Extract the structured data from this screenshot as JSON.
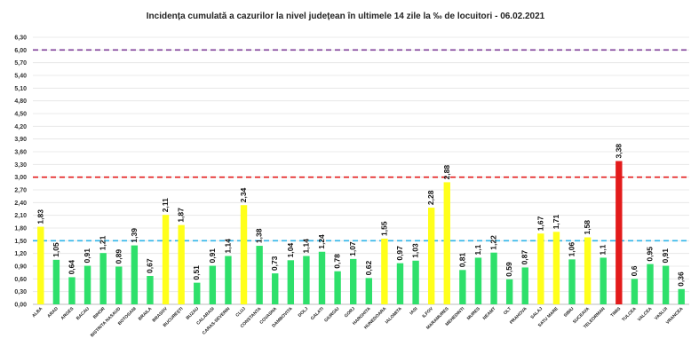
{
  "chart_data": {
    "type": "bar",
    "title": "Incidența cumulată a cazurilor la nivel județean în ultimele 14 zile la ‰ de locuitori - 06.02.2021",
    "xlabel": "",
    "ylabel": "",
    "ylim": [
      0,
      6.3
    ],
    "yticks": [
      "0,00",
      "0,30",
      "0,60",
      "0,90",
      "1,20",
      "1,50",
      "1,80",
      "2,10",
      "2,40",
      "2,70",
      "3,00",
      "3,30",
      "3,60",
      "3,90",
      "4,20",
      "4,50",
      "4,80",
      "5,10",
      "5,40",
      "5,70",
      "6,00",
      "6,30"
    ],
    "reference_lines": [
      {
        "value": 6.0,
        "color": "#7f3f98",
        "style": "dashed"
      },
      {
        "value": 3.0,
        "color": "#e31b1b",
        "style": "dashed"
      },
      {
        "value": 1.5,
        "color": "#2fb4e8",
        "style": "dashed"
      }
    ],
    "colors": {
      "green": "#2ee06b",
      "yellow": "#ffff1a",
      "red": "#e31b1b"
    },
    "categories": [
      "ALBA",
      "ARAD",
      "ARGES",
      "BACAU",
      "BIHOR",
      "BISTRITA NASAUD",
      "BOTOSANI",
      "BRAILA",
      "BRASOV",
      "BUCUREȘTI",
      "BUZAU",
      "CALARASI",
      "CARAS-SEVERIN",
      "CLUJ",
      "CONSTANTA",
      "COVASNA",
      "DAMBOVITA",
      "DOLJ",
      "GALATI",
      "GIURGIU",
      "GORJ",
      "HARGHITA",
      "HUNEDOARA",
      "IALOMITA",
      "IASI",
      "ILFOV",
      "MARAMURES",
      "MEHEDINTI",
      "MURES",
      "NEAMT",
      "OLT",
      "PRAHOVA",
      "SALAJ",
      "SATU MARE",
      "SIBIU",
      "SUCEAVA",
      "TELEORMAN",
      "TIMIS",
      "TULCEA",
      "VALCEA",
      "VASLUI",
      "VRANCEA"
    ],
    "values": [
      1.83,
      1.05,
      0.64,
      0.91,
      1.21,
      0.89,
      1.39,
      0.67,
      2.11,
      1.87,
      0.51,
      0.91,
      1.14,
      2.34,
      1.38,
      0.73,
      1.04,
      1.14,
      1.24,
      0.78,
      1.07,
      0.62,
      1.55,
      0.97,
      1.03,
      2.28,
      2.88,
      0.81,
      1.1,
      1.22,
      0.59,
      0.87,
      1.67,
      1.71,
      1.06,
      1.58,
      1.1,
      3.38,
      0.6,
      0.95,
      0.91,
      0.36
    ],
    "value_labels": [
      "1,83",
      "1,05",
      "0,64",
      "0,91",
      "1,21",
      "0,89",
      "1,39",
      "0,67",
      "2,11",
      "1,87",
      "0,51",
      "0,91",
      "1,14",
      "2,34",
      "1,38",
      "0,73",
      "1,04",
      "1,14",
      "1,24",
      "0,78",
      "1,07",
      "0,62",
      "1,55",
      "0,97",
      "1,03",
      "2,28",
      "2,88",
      "0,81",
      "1,1",
      "1,22",
      "0,59",
      "0,87",
      "1,67",
      "1,71",
      "1,06",
      "1,58",
      "1,1",
      "3,38",
      "0,6",
      "0,95",
      "0,91",
      "0,36"
    ],
    "bar_colors": [
      "yellow",
      "green",
      "green",
      "green",
      "green",
      "green",
      "green",
      "green",
      "yellow",
      "yellow",
      "green",
      "green",
      "green",
      "yellow",
      "green",
      "green",
      "green",
      "green",
      "green",
      "green",
      "green",
      "green",
      "yellow",
      "green",
      "green",
      "yellow",
      "yellow",
      "green",
      "green",
      "green",
      "green",
      "green",
      "yellow",
      "yellow",
      "green",
      "yellow",
      "green",
      "red",
      "green",
      "green",
      "green",
      "green"
    ]
  }
}
